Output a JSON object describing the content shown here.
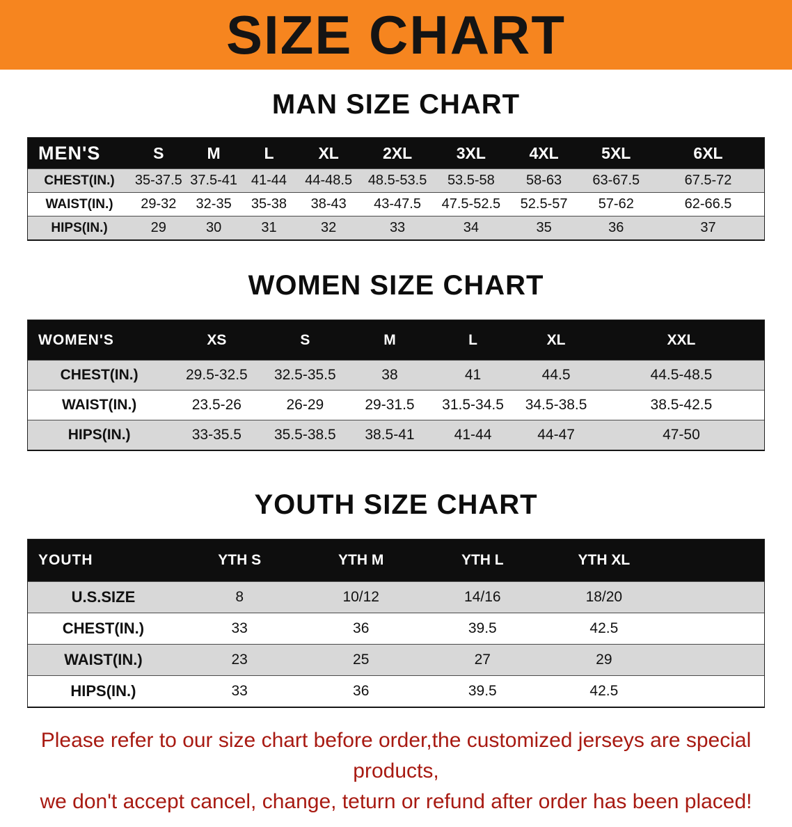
{
  "banner": {
    "title": "SIZE CHART",
    "bg_color": "#f6851f",
    "text_color": "#141414"
  },
  "sections": [
    {
      "heading": "MAN SIZE CHART",
      "table": {
        "header": [
          "MEN'S",
          "S",
          "M",
          "L",
          "XL",
          "2XL",
          "3XL",
          "4XL",
          "5XL",
          "6XL"
        ],
        "rows": [
          [
            "CHEST(IN.)",
            "35-37.5",
            "37.5-41",
            "41-44",
            "44-48.5",
            "48.5-53.5",
            "53.5-58",
            "58-63",
            "63-67.5",
            "67.5-72"
          ],
          [
            "WAIST(IN.)",
            "29-32",
            "32-35",
            "35-38",
            "38-43",
            "43-47.5",
            "47.5-52.5",
            "52.5-57",
            "57-62",
            "62-66.5"
          ],
          [
            "HIPS(IN.)",
            "29",
            "30",
            "31",
            "32",
            "33",
            "34",
            "35",
            "36",
            "37"
          ]
        ]
      }
    },
    {
      "heading": "WOMEN SIZE CHART",
      "table": {
        "header": [
          "WOMEN'S",
          "XS",
          "S",
          "M",
          "L",
          "XL",
          "XXL"
        ],
        "rows": [
          [
            "CHEST(IN.)",
            "29.5-32.5",
            "32.5-35.5",
            "38",
            "41",
            "44.5",
            "44.5-48.5"
          ],
          [
            "WAIST(IN.)",
            "23.5-26",
            "26-29",
            "29-31.5",
            "31.5-34.5",
            "34.5-38.5",
            "38.5-42.5"
          ],
          [
            "HIPS(IN.)",
            "33-35.5",
            "35.5-38.5",
            "38.5-41",
            "41-44",
            "44-47",
            "47-50"
          ]
        ]
      }
    },
    {
      "heading": "YOUTH SIZE CHART",
      "table": {
        "header": [
          "YOUTH",
          "YTH S",
          "YTH M",
          "YTH L",
          "YTH XL"
        ],
        "rows": [
          [
            "U.S.SIZE",
            "8",
            "10/12",
            "14/16",
            "18/20"
          ],
          [
            "CHEST(IN.)",
            "33",
            "36",
            "39.5",
            "42.5"
          ],
          [
            "WAIST(IN.)",
            "23",
            "25",
            "27",
            "29"
          ],
          [
            "HIPS(IN.)",
            "33",
            "36",
            "39.5",
            "42.5"
          ]
        ]
      }
    }
  ],
  "footer": {
    "line1": "Please refer to our size chart before order,the customized jerseys are special products,",
    "line2": "we don't accept cancel, change, teturn or refund after order has been placed!",
    "text_color": "#a81a12"
  }
}
